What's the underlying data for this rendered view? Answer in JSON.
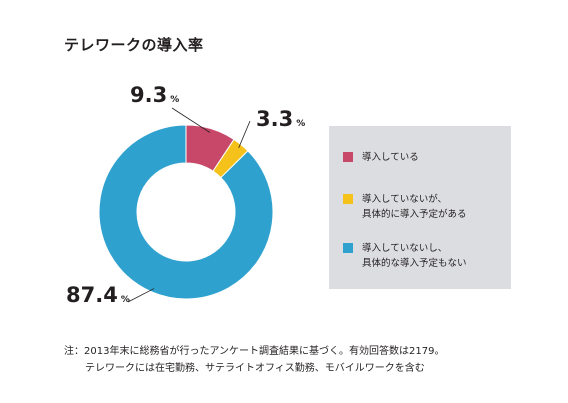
{
  "chart_data": {
    "type": "pie",
    "style": "donut",
    "title": "テレワークの導入率",
    "categories": [
      "導入している",
      "導入していないが、\n具体的に導入予定がある",
      "導入していないし、\n具体的な導入予定もない"
    ],
    "values": [
      9.3,
      3.3,
      87.4
    ],
    "value_labels": [
      "9.3",
      "3.3",
      "87.4"
    ],
    "unit": "%",
    "colors": [
      "#c8486a",
      "#f5c21b",
      "#2fa1cf"
    ],
    "legend_position": "right"
  },
  "note": {
    "line1": "注：2013年末に総務省が行ったアンケート調査結果に基づく。有効回答数は2179。",
    "line2": "テレワークには在宅勤務、サテライトオフィス勤務、モバイルワークを含む"
  }
}
